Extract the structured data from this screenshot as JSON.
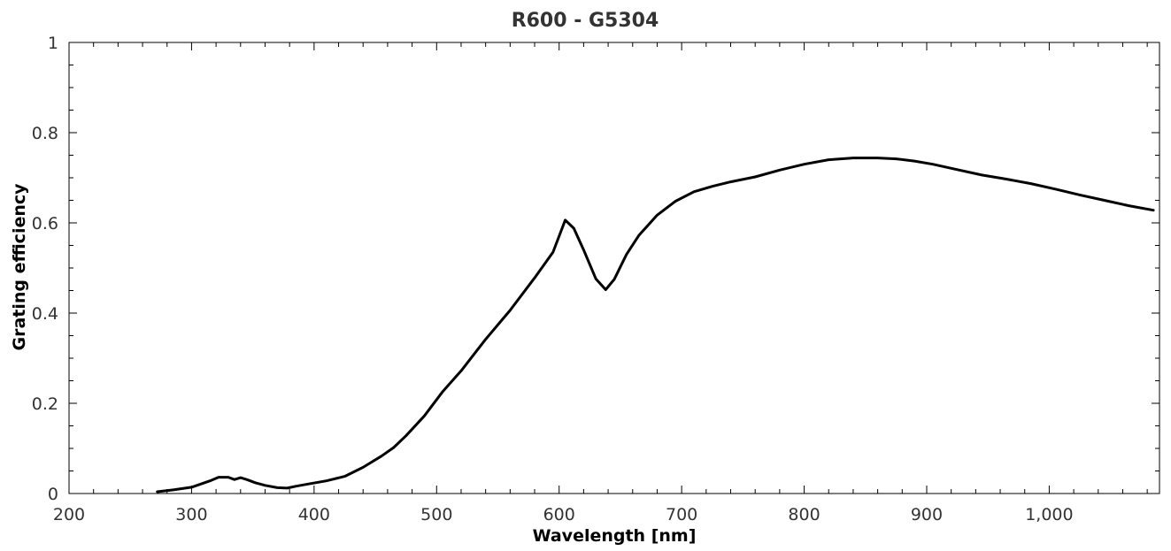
{
  "chart_data": {
    "type": "line",
    "title": "R600 - G5304",
    "xlabel": "Wavelength [nm]",
    "ylabel": "Grating efficiency",
    "xlim": [
      200,
      1090
    ],
    "ylim": [
      0,
      1
    ],
    "x_ticks": [
      {
        "value": 200,
        "label": "200"
      },
      {
        "value": 300,
        "label": "300"
      },
      {
        "value": 400,
        "label": "400"
      },
      {
        "value": 500,
        "label": "500"
      },
      {
        "value": 600,
        "label": "600"
      },
      {
        "value": 700,
        "label": "700"
      },
      {
        "value": 800,
        "label": "800"
      },
      {
        "value": 900,
        "label": "900"
      },
      {
        "value": 1000,
        "label": "1,000"
      }
    ],
    "x_minor_step": 20,
    "y_ticks": [
      {
        "value": 0,
        "label": "0"
      },
      {
        "value": 0.2,
        "label": "0.2"
      },
      {
        "value": 0.4,
        "label": "0.4"
      },
      {
        "value": 0.6,
        "label": "0.6"
      },
      {
        "value": 0.8,
        "label": "0.8"
      },
      {
        "value": 1,
        "label": "1"
      }
    ],
    "y_minor_step": 0.05,
    "grid": false,
    "line_color": "#000000",
    "series": [
      {
        "x": [
          272,
          285,
          300,
          315,
          322,
          330,
          335,
          340,
          345,
          352,
          360,
          370,
          378,
          385,
          395,
          410,
          425,
          440,
          455,
          465,
          475,
          490,
          505,
          520,
          540,
          560,
          580,
          595,
          605,
          612,
          620,
          630,
          638,
          645,
          655,
          665,
          680,
          695,
          710,
          725,
          740,
          760,
          780,
          800,
          820,
          840,
          860,
          875,
          890,
          905,
          925,
          945,
          965,
          985,
          1005,
          1025,
          1045,
          1065,
          1085
        ],
        "y": [
          0.004,
          0.008,
          0.014,
          0.028,
          0.036,
          0.036,
          0.031,
          0.035,
          0.031,
          0.024,
          0.018,
          0.013,
          0.012,
          0.016,
          0.021,
          0.028,
          0.038,
          0.058,
          0.083,
          0.102,
          0.128,
          0.172,
          0.226,
          0.272,
          0.342,
          0.406,
          0.478,
          0.535,
          0.606,
          0.588,
          0.54,
          0.476,
          0.452,
          0.475,
          0.53,
          0.572,
          0.617,
          0.648,
          0.669,
          0.681,
          0.691,
          0.702,
          0.717,
          0.73,
          0.74,
          0.744,
          0.744,
          0.742,
          0.737,
          0.73,
          0.718,
          0.706,
          0.697,
          0.687,
          0.675,
          0.662,
          0.65,
          0.638,
          0.628
        ]
      }
    ]
  }
}
